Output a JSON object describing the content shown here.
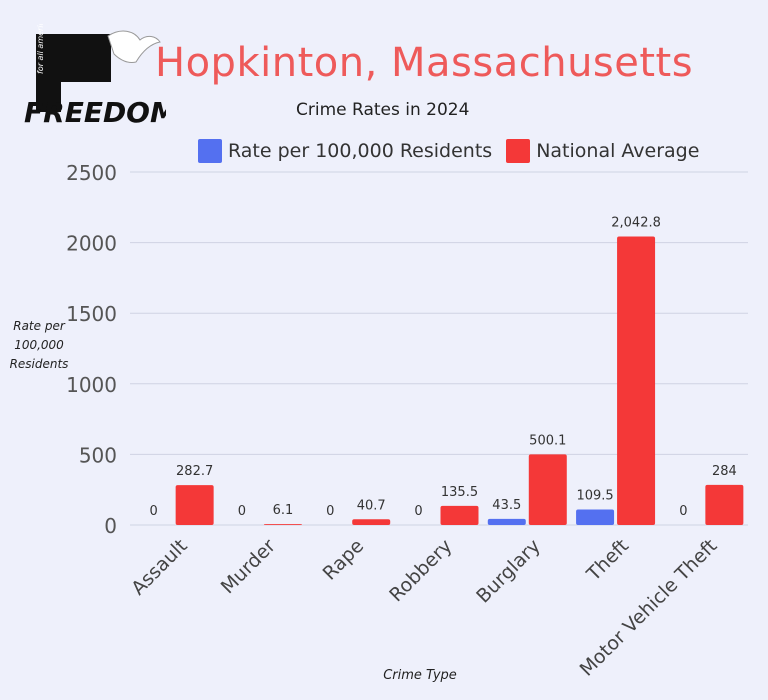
{
  "logo": {
    "name": "FREEDOM",
    "tagline": "for all americans"
  },
  "colors": {
    "rate": "#5470f0",
    "national": "#f43838",
    "title": "#ee5a5a",
    "background": "#eef0fb",
    "grid": "#cfd3e3"
  },
  "chart_data": {
    "type": "bar",
    "title": "Hopkinton, Massachusetts",
    "subtitle": "Crime Rates in 2024",
    "xlabel": "Crime Type",
    "ylabel": "Rate per 100,000 Residents",
    "ylim": [
      0,
      2500
    ],
    "yticks": [
      "0",
      "500",
      "1000",
      "1500",
      "2000",
      "2500"
    ],
    "grid": true,
    "legend_position": "top",
    "categories": [
      "Assault",
      "Murder",
      "Rape",
      "Robbery",
      "Burglary",
      "Theft",
      "Motor Vehicle Theft"
    ],
    "series": [
      {
        "name": "Rate per 100,000 Residents",
        "values": [
          0,
          0,
          0,
          0,
          43.5,
          109.5,
          0
        ],
        "labels": [
          "0",
          "0",
          "0",
          "0",
          "43.5",
          "109.5",
          "0"
        ],
        "color": "#5470f0"
      },
      {
        "name": "National Average",
        "values": [
          282.7,
          6.1,
          40.7,
          135.5,
          500.1,
          2042.8,
          284
        ],
        "labels": [
          "282.7",
          "6.1",
          "40.7",
          "135.5",
          "500.1",
          "2,042.8",
          "284"
        ],
        "color": "#f43838"
      }
    ]
  }
}
